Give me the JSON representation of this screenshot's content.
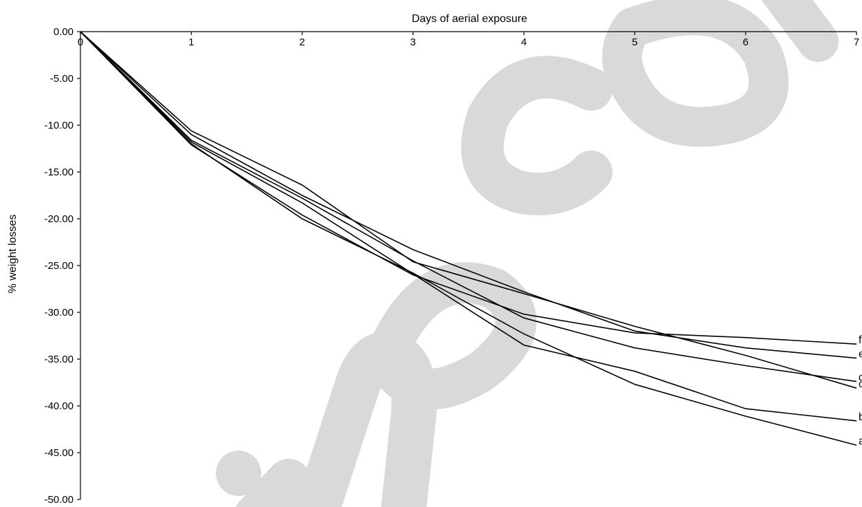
{
  "chart_data": {
    "type": "line",
    "xlabel": "Days of aerial exposure",
    "ylabel": "% weight losses",
    "xlim": [
      0,
      7
    ],
    "ylim": [
      -50,
      0
    ],
    "x_axis_position": "top",
    "x_ticks": [
      "0",
      "1",
      "2",
      "3",
      "4",
      "5",
      "6",
      "7"
    ],
    "y_ticks": [
      "0.00",
      "-5.00",
      "-10.00",
      "-15.00",
      "-20.00",
      "-25.00",
      "-30.00",
      "-35.00",
      "-40.00",
      "-45.00",
      "-50.00"
    ],
    "grid": false,
    "line_color": "#000000",
    "x": [
      0,
      1,
      2,
      3,
      4,
      5,
      6,
      7
    ],
    "series": [
      {
        "name": "a",
        "values": [
          0,
          -12.0,
          -20.0,
          -25.8,
          -32.3,
          -37.7,
          -41.1,
          -44.2
        ]
      },
      {
        "name": "b",
        "values": [
          0,
          -11.8,
          -18.3,
          -25.9,
          -33.5,
          -36.3,
          -40.3,
          -41.6
        ]
      },
      {
        "name": "c",
        "values": [
          0,
          -10.6,
          -16.4,
          -24.6,
          -28.0,
          -31.5,
          -34.6,
          -38.1
        ]
      },
      {
        "name": "d",
        "values": [
          0,
          -11.6,
          -17.8,
          -24.5,
          -30.6,
          -33.8,
          -35.7,
          -37.4
        ]
      },
      {
        "name": "e",
        "values": [
          0,
          -11.0,
          -17.5,
          -23.3,
          -27.8,
          -32.0,
          -33.8,
          -34.9
        ]
      },
      {
        "name": "f",
        "values": [
          0,
          -12.1,
          -19.6,
          -26.0,
          -30.2,
          -32.2,
          -32.7,
          -33.4
        ]
      }
    ]
  },
  "watermark_color": "#d9d9d9"
}
